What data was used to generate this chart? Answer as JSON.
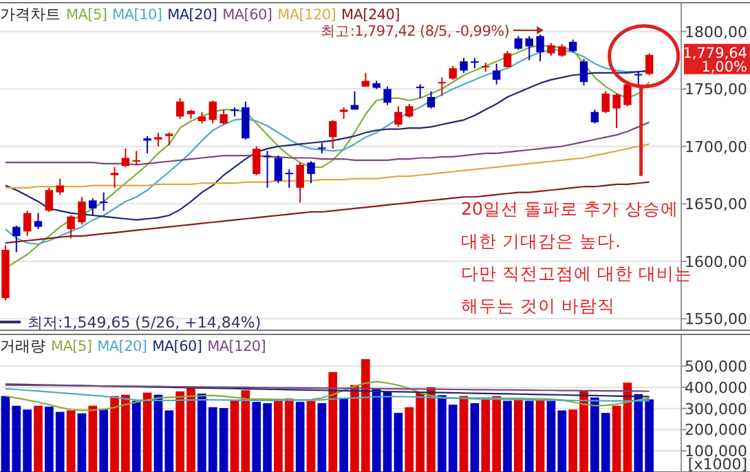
{
  "chart_data": [
    {
      "type": "candlestick",
      "title": "가격차트",
      "legend": "top left",
      "grid": "y",
      "tick_labels": "y",
      "categories": [
        null,
        null,
        null,
        null,
        null,
        null,
        null,
        null,
        null,
        null,
        null,
        null,
        null,
        null,
        null,
        null,
        null,
        null,
        null,
        null,
        null,
        null,
        null,
        null,
        null,
        null,
        null,
        null,
        null,
        null,
        null,
        null,
        null,
        null,
        null,
        null,
        null,
        null,
        null,
        null,
        null,
        null,
        null,
        null,
        null,
        null,
        null,
        null,
        null,
        null,
        null,
        null,
        null,
        null,
        null,
        null,
        null,
        null,
        null,
        null
      ],
      "ohlc": [
        [
          1568,
          1614,
          1566,
          1610
        ],
        [
          1630,
          1631,
          1608,
          1622
        ],
        [
          1626,
          1644,
          1622,
          1642
        ],
        [
          1635,
          1642,
          1628,
          1630
        ],
        [
          1644,
          1664,
          1643,
          1662
        ],
        [
          1660,
          1672,
          1658,
          1666
        ],
        [
          1628,
          1640,
          1620,
          1639
        ],
        [
          1634,
          1656,
          1632,
          1652
        ],
        [
          1653,
          1655,
          1640,
          1646
        ],
        [
          1652,
          1660,
          1644,
          1651
        ],
        [
          1675,
          1682,
          1664,
          1677
        ],
        [
          1683,
          1698,
          1682,
          1690
        ],
        [
          1687,
          1696,
          1684,
          1688
        ],
        [
          1707,
          1709,
          1694,
          1705
        ],
        [
          1706,
          1712,
          1700,
          1708
        ],
        [
          1709,
          1712,
          1701,
          1711
        ],
        [
          1726,
          1742,
          1724,
          1739
        ],
        [
          1728,
          1732,
          1724,
          1731
        ],
        [
          1722,
          1730,
          1720,
          1726
        ],
        [
          1723,
          1740,
          1720,
          1739
        ],
        [
          1720,
          1732,
          1719,
          1728
        ],
        [
          1732,
          1734,
          1726,
          1731
        ],
        [
          1734,
          1739,
          1706,
          1707
        ],
        [
          1676,
          1700,
          1675,
          1698
        ],
        [
          1692,
          1696,
          1664,
          1691
        ],
        [
          1690,
          1692,
          1668,
          1670
        ],
        [
          1677,
          1680,
          1664,
          1676
        ],
        [
          1664,
          1686,
          1651,
          1684
        ],
        [
          1686,
          1687,
          1668,
          1676
        ],
        [
          1699,
          1703,
          1694,
          1698
        ],
        [
          1708,
          1723,
          1698,
          1722
        ],
        [
          1730,
          1734,
          1724,
          1732
        ],
        [
          1736,
          1748,
          1732,
          1732
        ],
        [
          1752,
          1764,
          1752,
          1757
        ],
        [
          1755,
          1757,
          1750,
          1751
        ],
        [
          1750,
          1752,
          1736,
          1738
        ],
        [
          1719,
          1735,
          1717,
          1730
        ],
        [
          1726,
          1737,
          1725,
          1735
        ],
        [
          1752,
          1754,
          1742,
          1751
        ],
        [
          1743,
          1748,
          1733,
          1734
        ],
        [
          1755,
          1760,
          1744,
          1756
        ],
        [
          1759,
          1770,
          1758,
          1768
        ],
        [
          1774,
          1777,
          1764,
          1766
        ],
        [
          1774,
          1777,
          1768,
          1773
        ],
        [
          1769,
          1773,
          1765,
          1770
        ],
        [
          1766,
          1772,
          1754,
          1758
        ],
        [
          1769,
          1783,
          1769,
          1781
        ],
        [
          1794,
          1796,
          1784,
          1785
        ],
        [
          1794,
          1796,
          1775,
          1787
        ],
        [
          1796,
          1797.42,
          1774,
          1782
        ],
        [
          1781,
          1790,
          1779,
          1788
        ],
        [
          1779,
          1789,
          1778,
          1787
        ],
        [
          1791,
          1793,
          1782,
          1783
        ],
        [
          1774,
          1776,
          1753,
          1756
        ],
        [
          1730,
          1732,
          1720,
          1721
        ],
        [
          1730,
          1748,
          1729,
          1746
        ],
        [
          1733,
          1746,
          1716,
          1745
        ],
        [
          1736,
          1756,
          1735,
          1754
        ],
        [
          1763,
          1765,
          1752,
          1762
        ],
        [
          1763,
          1781,
          1762,
          1779.64
        ]
      ],
      "colors": [
        "#dd0000",
        "#0000bb",
        "#dd0000",
        "#0000bb",
        "#dd0000",
        "#dd0000",
        "#dd0000",
        "#dd0000",
        "#0000bb",
        "#0000bb",
        "#dd0000",
        "#dd0000",
        "#dd0000",
        "#0000bb",
        "#dd0000",
        "#dd0000",
        "#dd0000",
        "#dd0000",
        "#dd0000",
        "#dd0000",
        "#dd0000",
        "#0000bb",
        "#0000bb",
        "#dd0000",
        "#0000bb",
        "#0000bb",
        "#0000bb",
        "#dd0000",
        "#0000bb",
        "#0000bb",
        "#dd0000",
        "#dd0000",
        "#0000bb",
        "#dd0000",
        "#0000bb",
        "#0000bb",
        "#dd0000",
        "#dd0000",
        "#0000bb",
        "#0000bb",
        "#dd0000",
        "#dd0000",
        "#0000bb",
        "#0000bb",
        "#dd0000",
        "#0000bb",
        "#dd0000",
        "#0000bb",
        "#0000bb",
        "#0000bb",
        "#dd0000",
        "#dd0000",
        "#0000bb",
        "#0000bb",
        "#0000bb",
        "#dd0000",
        "#dd0000",
        "#dd0000",
        "#0000bb",
        "#dd0000"
      ],
      "series": [
        {
          "type": "line",
          "name": "MA[5]",
          "color": "#7fae3a",
          "values": [
            1594,
            1600,
            1606,
            1614,
            1622,
            1630,
            1636,
            1640,
            1646,
            1652,
            1660,
            1668,
            1676,
            1684,
            1694,
            1702,
            1716,
            1722,
            1726,
            1730,
            1732,
            1732,
            1730,
            1720,
            1710,
            1700,
            1692,
            1686,
            1682,
            1682,
            1688,
            1698,
            1712,
            1728,
            1740,
            1742,
            1742,
            1740,
            1742,
            1746,
            1750,
            1756,
            1762,
            1766,
            1770,
            1774,
            1778,
            1782,
            1786,
            1788,
            1787,
            1786,
            1784,
            1772,
            1760,
            1752,
            1746,
            1742,
            1746,
            1756
          ]
        },
        {
          "type": "line",
          "name": "MA[10]",
          "color": "#4fa9c9",
          "values": [
            1628,
            1620,
            1616,
            1615,
            1618,
            1622,
            1626,
            1630,
            1636,
            1640,
            1646,
            1652,
            1656,
            1662,
            1670,
            1678,
            1686,
            1695,
            1705,
            1714,
            1719,
            1723,
            1724,
            1722,
            1718,
            1712,
            1706,
            1701,
            1698,
            1697,
            1696,
            1697,
            1702,
            1708,
            1712,
            1718,
            1724,
            1730,
            1734,
            1740,
            1745,
            1750,
            1754,
            1758,
            1762,
            1765,
            1768,
            1773,
            1778,
            1782,
            1784,
            1784,
            1782,
            1778,
            1772,
            1768,
            1766,
            1765,
            1765,
            1766
          ]
        },
        {
          "type": "line",
          "name": "MA[20]",
          "color": "#1f2a6e",
          "values": [
            1666,
            1662,
            1657,
            1652,
            1646,
            1644,
            1642,
            1641,
            1640,
            1639,
            1638,
            1637,
            1636,
            1637,
            1638,
            1640,
            1645,
            1652,
            1660,
            1666,
            1675,
            1682,
            1689,
            1695,
            1698,
            1700,
            1701,
            1702,
            1703,
            1704,
            1705,
            1707,
            1709,
            1712,
            1714,
            1715,
            1715,
            1716,
            1716,
            1717,
            1719,
            1721,
            1723,
            1727,
            1732,
            1737,
            1743,
            1747,
            1751,
            1755,
            1758,
            1760,
            1762,
            1763,
            1764,
            1764,
            1764,
            1764,
            1765,
            1766
          ]
        },
        {
          "type": "line",
          "name": "MA[60]",
          "color": "#7a4a7a",
          "values": [
            1686,
            1686,
            1686,
            1686,
            1686,
            1686,
            1686,
            1686,
            1686,
            1685,
            1685,
            1685,
            1684,
            1685,
            1686,
            1687,
            1688,
            1689,
            1690,
            1691,
            1692,
            1692,
            1692,
            1692,
            1691,
            1691,
            1690,
            1690,
            1690,
            1689,
            1689,
            1689,
            1688,
            1688,
            1688,
            1688,
            1689,
            1689,
            1690,
            1690,
            1691,
            1691,
            1692,
            1693,
            1694,
            1694,
            1695,
            1696,
            1697,
            1698,
            1699,
            1700,
            1702,
            1704,
            1706,
            1708,
            1710,
            1713,
            1717,
            1721
          ]
        },
        {
          "type": "line",
          "name": "MA[120]",
          "color": "#e0a840",
          "values": [
            1664,
            1664,
            1664,
            1665,
            1665,
            1665,
            1665,
            1665,
            1666,
            1666,
            1666,
            1666,
            1666,
            1666,
            1667,
            1667,
            1667,
            1667,
            1668,
            1668,
            1668,
            1668,
            1669,
            1669,
            1669,
            1670,
            1670,
            1670,
            1670,
            1671,
            1671,
            1671,
            1672,
            1672,
            1672,
            1673,
            1674,
            1674,
            1675,
            1676,
            1677,
            1678,
            1679,
            1680,
            1681,
            1682,
            1683,
            1684,
            1685,
            1686,
            1687,
            1688,
            1689,
            1690,
            1692,
            1694,
            1696,
            1698,
            1700,
            1702
          ]
        },
        {
          "type": "line",
          "name": "MA[240]",
          "color": "#8b1a1a",
          "values": [
            1616,
            1617,
            1618,
            1619,
            1620,
            1621,
            1622,
            1622,
            1623,
            1624,
            1625,
            1626,
            1627,
            1628,
            1629,
            1630,
            1631,
            1632,
            1633,
            1634,
            1635,
            1636,
            1637,
            1638,
            1639,
            1640,
            1641,
            1642,
            1643,
            1643,
            1644,
            1645,
            1646,
            1647,
            1648,
            1649,
            1650,
            1651,
            1652,
            1653,
            1654,
            1655,
            1656,
            1656,
            1657,
            1658,
            1659,
            1660,
            1660,
            1661,
            1662,
            1663,
            1664,
            1665,
            1665,
            1666,
            1667,
            1667,
            1668,
            1669
          ]
        }
      ],
      "ylim": [
        1540,
        1825
      ],
      "yticks": [
        {
          "value": 1550,
          "label": "1550,00"
        },
        {
          "value": 1600,
          "label": "1600,00"
        },
        {
          "value": 1650,
          "label": "1650,00"
        },
        {
          "value": 1700,
          "label": "1700,00"
        },
        {
          "value": 1750,
          "label": "1750,00"
        },
        {
          "value": 1800,
          "label": "1800,00"
        }
      ],
      "annotations": [
        "최고:1,797,42 (8/5, -0,99%)",
        "최저:1,549,65 (5/26, +14,84%)",
        "1,779,64",
        "1,00%",
        "20일선 돌파로 추가 상승에",
        "대한 기대감은 높다.",
        "다만 직전고점에 대한 대비는",
        "해두는 것이 바람직"
      ]
    },
    {
      "type": "bar",
      "title": "거래량",
      "legend": "top left",
      "grid": "y",
      "tick_labels": "y",
      "ylabel": "[x1000]",
      "categories": [
        null,
        null,
        null,
        null,
        null,
        null,
        null,
        null,
        null,
        null,
        null,
        null,
        null,
        null,
        null,
        null,
        null,
        null,
        null,
        null,
        null,
        null,
        null,
        null,
        null,
        null,
        null,
        null,
        null,
        null,
        null,
        null,
        null,
        null,
        null,
        null,
        null,
        null,
        null,
        null,
        null,
        null,
        null,
        null,
        null,
        null,
        null,
        null,
        null,
        null,
        null,
        null,
        null,
        null,
        null,
        null,
        null,
        null,
        null,
        null
      ],
      "series": [
        {
          "type": "bar",
          "values": [
            359000,
            313000,
            295000,
            313000,
            309000,
            284000,
            291000,
            277000,
            313000,
            295000,
            359000,
            365000,
            336000,
            375000,
            365000,
            291000,
            381000,
            404000,
            370000,
            306000,
            302000,
            341000,
            386000,
            331000,
            325000,
            336000,
            347000,
            331000,
            336000,
            325000,
            472000,
            347000,
            411000,
            533000,
            393000,
            381000,
            279000,
            306000,
            375000,
            400000,
            363000,
            318000,
            359000,
            325000,
            347000,
            359000,
            336000,
            341000,
            336000,
            341000,
            336000,
            291000,
            295000,
            381000,
            352000,
            279000,
            313000,
            422000,
            368000,
            343000
          ],
          "colors": [
            "#0000c0",
            "#0000c0",
            "#0000c0",
            "#e00000",
            "#0000c0",
            "#0000c0",
            "#e00000",
            "#0000c0",
            "#e00000",
            "#0000c0",
            "#e00000",
            "#e00000",
            "#0000c0",
            "#e00000",
            "#0000c0",
            "#0000c0",
            "#e00000",
            "#e00000",
            "#0000c0",
            "#0000c0",
            "#0000c0",
            "#e00000",
            "#e00000",
            "#0000c0",
            "#0000c0",
            "#e00000",
            "#e00000",
            "#0000c0",
            "#e00000",
            "#0000c0",
            "#e00000",
            "#0000c0",
            "#e00000",
            "#e00000",
            "#0000c0",
            "#0000c0",
            "#0000c0",
            "#e00000",
            "#e00000",
            "#e00000",
            "#0000c0",
            "#0000c0",
            "#e00000",
            "#0000c0",
            "#e00000",
            "#e00000",
            "#0000c0",
            "#e00000",
            "#0000c0",
            "#e00000",
            "#0000c0",
            "#0000c0",
            "#e00000",
            "#e00000",
            "#0000c0",
            "#0000c0",
            "#e00000",
            "#e00000",
            "#0000c0",
            "#0000c0"
          ]
        },
        {
          "type": "line",
          "name": "MA[5]",
          "color": "#8aae3a",
          "values": [
            359000,
            350000,
            340000,
            330000,
            318000,
            305000,
            295000,
            291000,
            292000,
            296000,
            305000,
            318000,
            330000,
            340000,
            350000,
            352000,
            355000,
            358000,
            360000,
            362000,
            358000,
            352000,
            346000,
            345000,
            344000,
            343000,
            342000,
            341000,
            342000,
            350000,
            365000,
            385000,
            405000,
            420000,
            427000,
            420000,
            410000,
            395000,
            375000,
            360000,
            352000,
            350000,
            349000,
            350000,
            350000,
            349000,
            348000,
            348000,
            347000,
            346000,
            344000,
            340000,
            330000,
            320000,
            313000,
            315000,
            320000,
            330000,
            340000,
            350000
          ]
        },
        {
          "type": "line",
          "name": "MA[20]",
          "color": "#4fa9c9",
          "values": [
            393000,
            390000,
            386000,
            382000,
            378000,
            374000,
            370000,
            366000,
            362000,
            358000,
            352000,
            346000,
            340000,
            338000,
            338000,
            338000,
            339000,
            340000,
            341000,
            341000,
            340000,
            339000,
            338000,
            338000,
            338000,
            338000,
            339000,
            339000,
            340000,
            341000,
            345000,
            348000,
            350000,
            352000,
            355000,
            356000,
            356000,
            355000,
            354000,
            352000,
            350000,
            348000,
            347000,
            346000,
            345000,
            344000,
            343000,
            342000,
            341000,
            340000,
            340000,
            339000,
            338000,
            338000,
            337000,
            336000,
            336000,
            336000,
            336000,
            337000
          ]
        },
        {
          "type": "line",
          "name": "MA[60]",
          "color": "#1f2a6e",
          "values": [
            415000,
            414000,
            413000,
            412000,
            411000,
            410000,
            409000,
            408000,
            407000,
            406000,
            405000,
            404000,
            403000,
            402000,
            401000,
            400000,
            399000,
            398000,
            397000,
            396000,
            395000,
            394000,
            393000,
            392000,
            391000,
            390000,
            389000,
            388000,
            387000,
            386000,
            385000,
            384000,
            383000,
            382000,
            381000,
            380000,
            379000,
            378000,
            377000,
            376000,
            375000,
            374000,
            373000,
            372000,
            371000,
            370000,
            369000,
            368000,
            367000,
            366000,
            365000,
            364000,
            363000,
            362000,
            361000,
            360000,
            359000,
            358000,
            357000,
            356000
          ]
        },
        {
          "type": "line",
          "name": "MA[120]",
          "color": "#7a4a7a",
          "values": [
            411000,
            410000,
            410000,
            409000,
            409000,
            408000,
            408000,
            407000,
            407000,
            406000,
            406000,
            405000,
            405000,
            404000,
            404000,
            403000,
            403000,
            402000,
            402000,
            401000,
            401000,
            400000,
            400000,
            399000,
            399000,
            398000,
            398000,
            397000,
            397000,
            396000,
            396000,
            395000,
            395000,
            394000,
            394000,
            393000,
            393000,
            392000,
            392000,
            391000,
            391000,
            390000,
            390000,
            389000,
            389000,
            388000,
            388000,
            387000,
            387000,
            386000,
            386000,
            385000,
            385000,
            384000,
            384000,
            383000,
            383000,
            382000,
            382000,
            381000
          ]
        }
      ],
      "ylim": [
        0,
        650000
      ],
      "yticks": [
        {
          "value": 100000,
          "label": "100,000"
        },
        {
          "value": 200000,
          "label": "200,000"
        },
        {
          "value": 300000,
          "label": "300,000"
        },
        {
          "value": 400000,
          "label": "400,000"
        },
        {
          "value": 500000,
          "label": "500,000"
        }
      ]
    }
  ]
}
